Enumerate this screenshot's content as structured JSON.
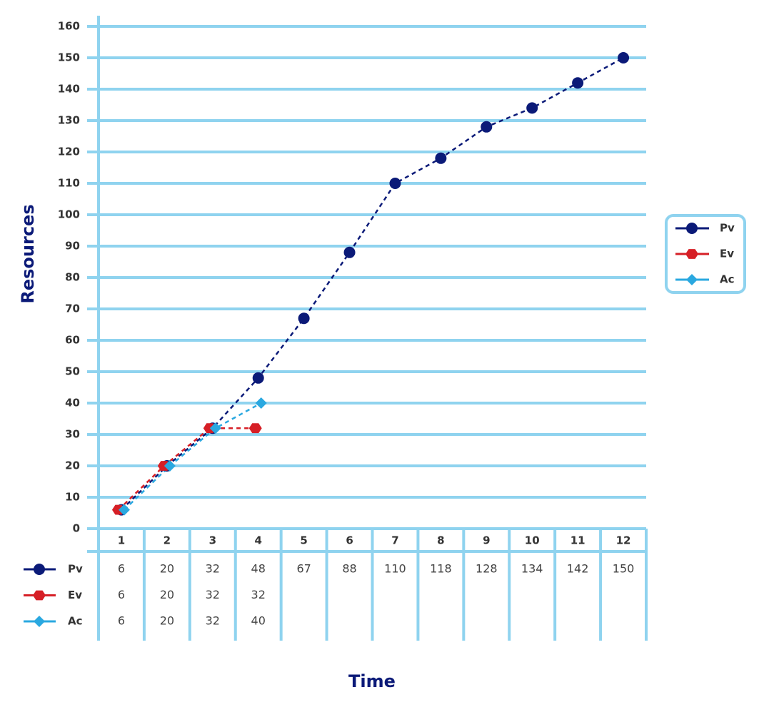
{
  "chart_data": {
    "type": "line",
    "x_label": "Time",
    "y_label": "Resources",
    "categories": [
      "1",
      "2",
      "3",
      "4",
      "5",
      "6",
      "7",
      "8",
      "9",
      "10",
      "11",
      "12"
    ],
    "series": [
      {
        "name": "Pv",
        "color": "#0b1a78",
        "marker": "circle",
        "values": [
          6,
          20,
          32,
          48,
          67,
          88,
          110,
          118,
          128,
          134,
          142,
          150
        ]
      },
      {
        "name": "Ev",
        "color": "#d61f26",
        "marker": "hexagon",
        "values": [
          6,
          20,
          32,
          32,
          null,
          null,
          null,
          null,
          null,
          null,
          null,
          null
        ]
      },
      {
        "name": "Ac",
        "color": "#2aa8e0",
        "marker": "diamond",
        "values": [
          6,
          20,
          32,
          40,
          null,
          null,
          null,
          null,
          null,
          null,
          null,
          null
        ]
      }
    ],
    "ylim": [
      0,
      160
    ],
    "yticks": [
      0,
      10,
      20,
      30,
      40,
      50,
      60,
      70,
      80,
      90,
      100,
      110,
      120,
      130,
      140,
      150,
      160
    ],
    "grid": true,
    "legend": "right",
    "grid_color": "#8fd3ef"
  }
}
